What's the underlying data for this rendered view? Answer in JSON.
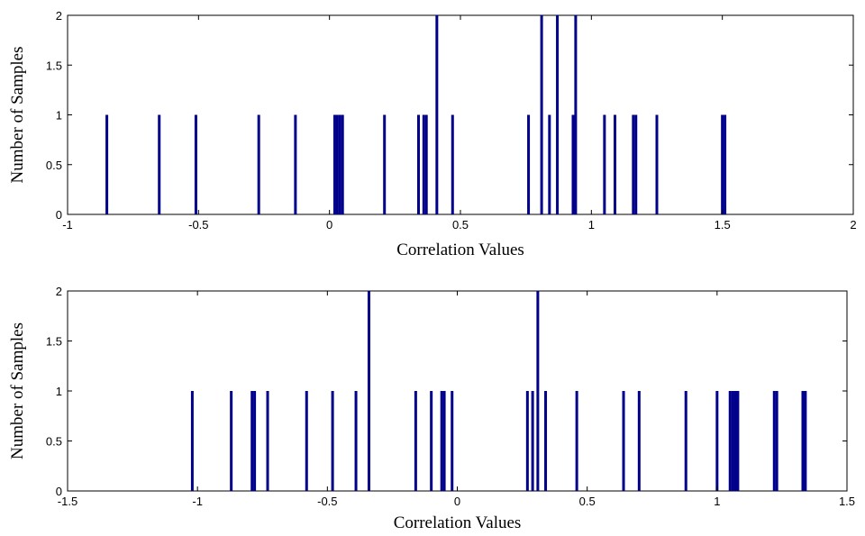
{
  "colors": {
    "bar": "#00008b",
    "axis": "#000000",
    "background": "#ffffff"
  },
  "chart_data": [
    {
      "type": "bar",
      "xlabel": "Correlation Values",
      "ylabel": "Number of Samples",
      "xlim": [
        -1,
        2
      ],
      "ylim": [
        0,
        2
      ],
      "xticks": [
        "-1",
        "-0.5",
        "0",
        "0.5",
        "1",
        "1.5",
        "2"
      ],
      "yticks": [
        "0",
        "0.5",
        "1",
        "1.5",
        "2"
      ],
      "grid": false,
      "x": [
        -0.85,
        -0.65,
        -0.51,
        -0.27,
        -0.13,
        0.02,
        0.03,
        0.04,
        0.05,
        0.21,
        0.34,
        0.36,
        0.37,
        0.41,
        0.47,
        0.76,
        0.81,
        0.84,
        0.87,
        0.93,
        0.94,
        1.05,
        1.09,
        1.16,
        1.17,
        1.25,
        1.5,
        1.51
      ],
      "values": [
        1,
        1,
        1,
        1,
        1,
        1,
        1,
        1,
        1,
        1,
        1,
        1,
        1,
        2,
        1,
        1,
        2,
        1,
        2,
        1,
        2,
        1,
        1,
        1,
        1,
        1,
        1,
        1
      ]
    },
    {
      "type": "bar",
      "xlabel": "Correlation Values",
      "ylabel": "Number of Samples",
      "xlim": [
        -1.5,
        1.5
      ],
      "ylim": [
        0,
        2
      ],
      "xticks": [
        "-1.5",
        "-1",
        "-0.5",
        "0",
        "0.5",
        "1",
        "1.5"
      ],
      "yticks": [
        "0",
        "0.5",
        "1",
        "1.5",
        "2"
      ],
      "grid": false,
      "x": [
        -1.02,
        -0.87,
        -0.79,
        -0.78,
        -0.73,
        -0.58,
        -0.48,
        -0.39,
        -0.34,
        -0.16,
        -0.1,
        -0.06,
        -0.05,
        -0.02,
        0.27,
        0.29,
        0.31,
        0.34,
        0.46,
        0.64,
        0.7,
        0.88,
        1.0,
        1.05,
        1.06,
        1.07,
        1.08,
        1.22,
        1.23,
        1.33,
        1.34
      ],
      "values": [
        1,
        1,
        1,
        1,
        1,
        1,
        1,
        1,
        2,
        1,
        1,
        1,
        1,
        1,
        1,
        1,
        2,
        1,
        1,
        1,
        1,
        1,
        1,
        1,
        1,
        1,
        1,
        1,
        1,
        1,
        1
      ]
    }
  ]
}
